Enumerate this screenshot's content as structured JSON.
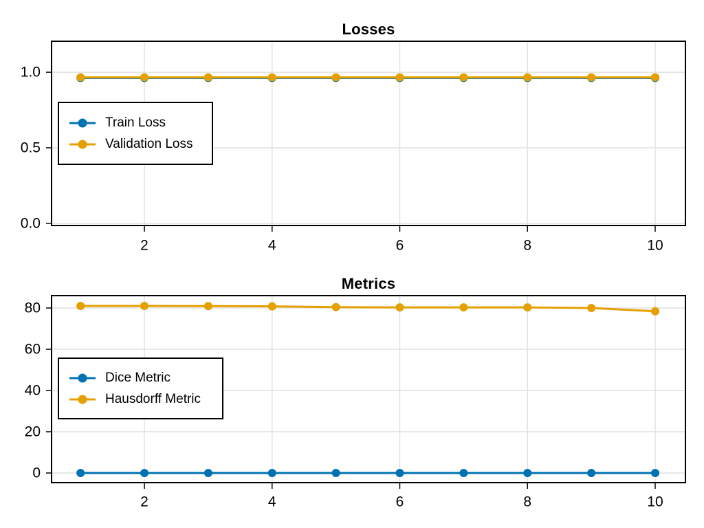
{
  "figure": {
    "background": "#ffffff"
  },
  "colors": {
    "series_blue": "#0072B2",
    "series_orange": "#E69F00",
    "grid": "#e1e1e1",
    "frame": "#000000",
    "text": "#000000"
  },
  "chart_data": [
    {
      "type": "line",
      "title": "Losses",
      "x": [
        1,
        2,
        3,
        4,
        5,
        6,
        7,
        8,
        9,
        10
      ],
      "series": [
        {
          "name": "Train Loss",
          "color": "#0072B2",
          "values": [
            0.962,
            0.962,
            0.962,
            0.962,
            0.962,
            0.962,
            0.962,
            0.962,
            0.962,
            0.962
          ]
        },
        {
          "name": "Validation Loss",
          "color": "#E69F00",
          "values": [
            0.966,
            0.966,
            0.966,
            0.966,
            0.966,
            0.966,
            0.966,
            0.966,
            0.966,
            0.966
          ]
        }
      ],
      "xticks": [
        2,
        4,
        6,
        8,
        10
      ],
      "xtick_labels": [
        "2",
        "4",
        "6",
        "8",
        "10"
      ],
      "yticks": [
        0.0,
        0.5,
        1.0
      ],
      "ytick_labels": [
        "0.0",
        "0.5",
        "1.0"
      ],
      "xlim": [
        0.546,
        10.474
      ],
      "ylim": [
        -0.014,
        1.205
      ],
      "grid": true,
      "legend_position": "upper-left-inside"
    },
    {
      "type": "line",
      "title": "Metrics",
      "x": [
        1,
        2,
        3,
        4,
        5,
        6,
        7,
        8,
        9,
        10
      ],
      "series": [
        {
          "name": "Dice Metric",
          "color": "#0072B2",
          "values": [
            0.0,
            0.0,
            0.0,
            0.0,
            0.0,
            0.0,
            0.0,
            0.0,
            0.0,
            0.0
          ]
        },
        {
          "name": "Hausdorff Metric",
          "color": "#E69F00",
          "values": [
            81.0,
            81.0,
            80.9,
            80.8,
            80.4,
            80.3,
            80.3,
            80.3,
            80.0,
            78.4
          ]
        }
      ],
      "xticks": [
        2,
        4,
        6,
        8,
        10
      ],
      "xtick_labels": [
        "2",
        "4",
        "6",
        "8",
        "10"
      ],
      "yticks": [
        0,
        20,
        40,
        60,
        80
      ],
      "ytick_labels": [
        "0",
        "20",
        "40",
        "60",
        "80"
      ],
      "xlim": [
        0.546,
        10.474
      ],
      "ylim": [
        -4.667,
        86.0
      ],
      "grid": true,
      "legend_position": "middle-left-inside"
    }
  ]
}
